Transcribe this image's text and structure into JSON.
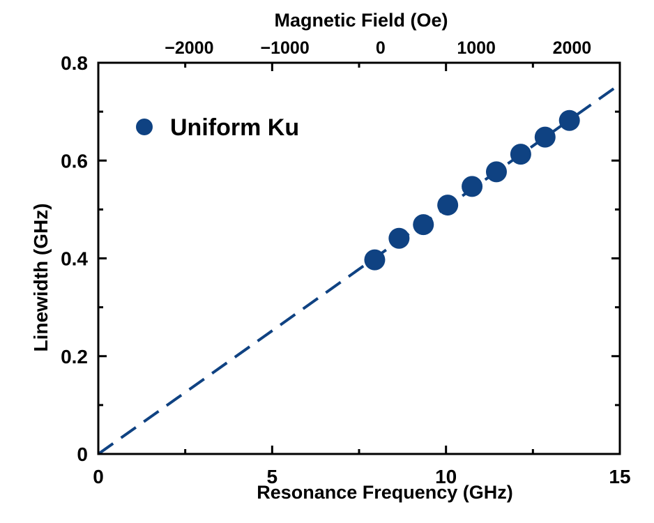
{
  "chart_data": {
    "type": "scatter",
    "xlabel": "Resonance Frequency (GHz)",
    "ylabel": "Linewidth (GHz)",
    "top_xlabel": "Magnetic Field (Oe)",
    "xlim": [
      0,
      15
    ],
    "ylim": [
      0,
      0.8
    ],
    "top_xlim": [
      -2950,
      2500
    ],
    "x_ticks": [
      0,
      5,
      10,
      15
    ],
    "x_tick_labels": [
      "0",
      "5",
      "10",
      "15"
    ],
    "y_ticks": [
      0,
      0.2,
      0.4,
      0.6,
      0.8
    ],
    "y_tick_labels": [
      "0",
      "0.2",
      "0.4",
      "0.6",
      "0.8"
    ],
    "top_ticks": [
      -2000,
      -1000,
      0,
      1000,
      2000
    ],
    "top_tick_labels": [
      "−2000",
      "−1000",
      "0",
      "1000",
      "2000"
    ],
    "grid": false,
    "legend_position": "top-left",
    "series": [
      {
        "name": "Uniform Ku",
        "color": "#0f4282",
        "marker": "circle",
        "x": [
          7.95,
          8.65,
          9.35,
          10.05,
          10.75,
          11.45,
          12.15,
          12.85,
          13.55
        ],
        "y": [
          0.397,
          0.441,
          0.469,
          0.509,
          0.547,
          0.577,
          0.613,
          0.648,
          0.682
        ]
      }
    ],
    "fit_line": {
      "style": "dashed",
      "color": "#0f4282",
      "x": [
        0,
        15
      ],
      "y": [
        0,
        0.756
      ]
    }
  }
}
